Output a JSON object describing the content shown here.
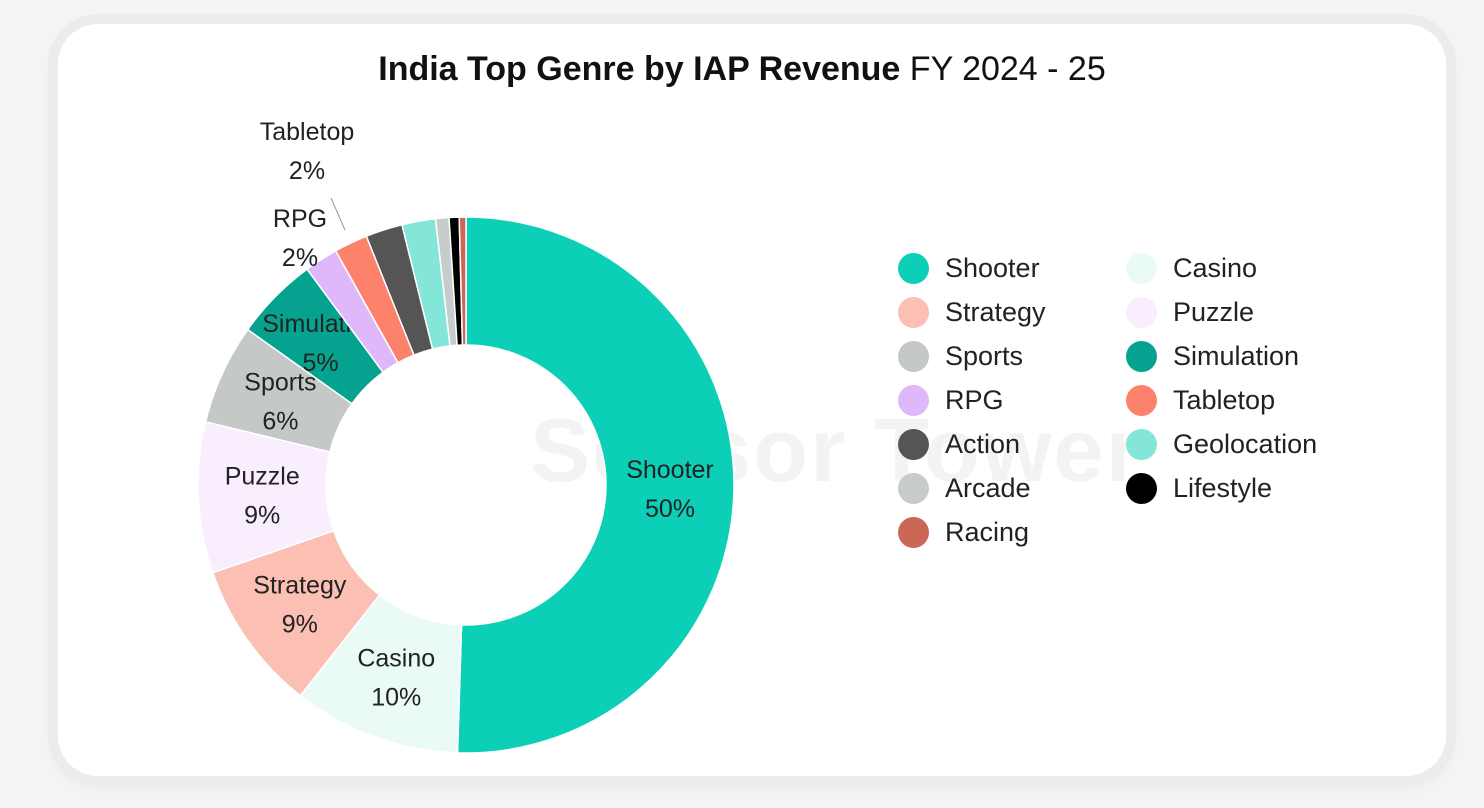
{
  "chart_data": {
    "type": "pie",
    "title": "India Top Genre by IAP Revenue",
    "subtitle": "FY 2024 - 25",
    "donut": true,
    "slices": [
      {
        "name": "Shooter",
        "value": 50,
        "label": "50%",
        "color": "#0bcfb6"
      },
      {
        "name": "Casino",
        "value": 10,
        "label": "10%",
        "color": "#eafaf7"
      },
      {
        "name": "Strategy",
        "value": 9,
        "label": "9%",
        "color": "#fcbfb3"
      },
      {
        "name": "Puzzle",
        "value": 9,
        "label": "9%",
        "color": "#f8eefd"
      },
      {
        "name": "Sports",
        "value": 6,
        "label": "6%",
        "color": "#c4c9c8"
      },
      {
        "name": "Simulation",
        "value": 5,
        "label": "5%",
        "color": "#05a38f"
      },
      {
        "name": "RPG",
        "value": 2,
        "label": "2%",
        "color": "#dfb8fb"
      },
      {
        "name": "Tabletop",
        "value": 2,
        "label": "2%",
        "color": "#fc826c"
      },
      {
        "name": "Action",
        "value": 2.2,
        "color": "#555555"
      },
      {
        "name": "Geolocation",
        "value": 2.0,
        "color": "#84e5d9"
      },
      {
        "name": "Arcade",
        "value": 0.8,
        "color": "#c6cbcb"
      },
      {
        "name": "Lifestyle",
        "value": 0.6,
        "color": "#000000"
      },
      {
        "name": "Racing",
        "value": 0.4,
        "color": "#cc6757"
      }
    ],
    "legend": {
      "placement": "right",
      "items": [
        "Shooter",
        "Casino",
        "Strategy",
        "Puzzle",
        "Sports",
        "Simulation",
        "RPG",
        "Tabletop",
        "Action",
        "Geolocation",
        "Arcade",
        "Lifestyle",
        "Racing"
      ]
    }
  },
  "watermark": "Sensor Tower"
}
